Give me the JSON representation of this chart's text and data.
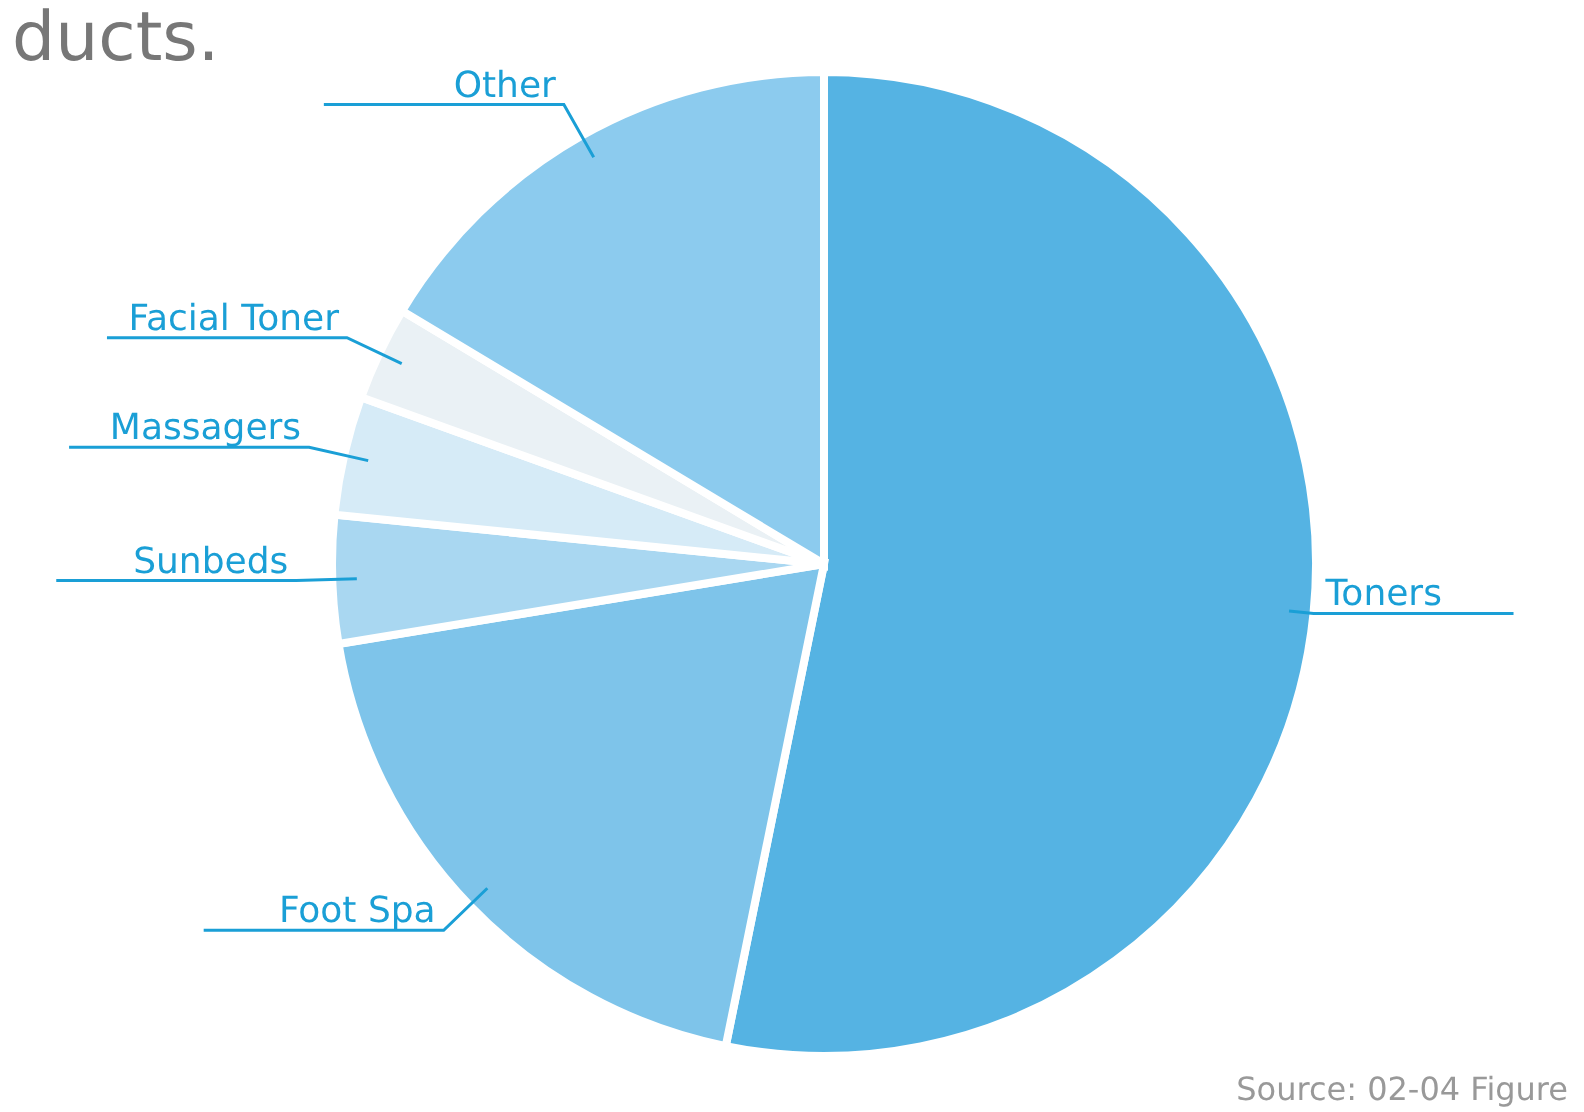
{
  "chart_data": {
    "type": "pie",
    "title": "ducts.",
    "categories": [
      "Toners",
      "Foot Spa",
      "Sunbeds",
      "Massagers",
      "Facial Toner",
      "Other"
    ],
    "values": [
      53.2,
      19.2,
      4.2,
      3.9,
      3.1,
      16.4
    ],
    "colors": [
      "#55b3e3",
      "#7ec4ea",
      "#a9d7f1",
      "#d6ebf7",
      "#eaf1f5",
      "#8ccbee"
    ],
    "annotations": [
      "Source: 02-04 Figure"
    ]
  }
}
